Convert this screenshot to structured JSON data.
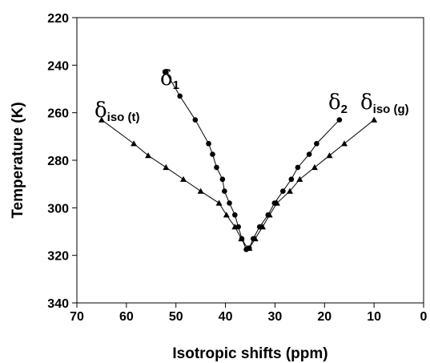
{
  "chart_data": {
    "type": "line",
    "title": "",
    "xlabel": "Isotropic shifts (ppm)",
    "ylabel": "Temperature (K)",
    "xlim": [
      70,
      0
    ],
    "ylim": [
      340,
      220
    ],
    "x_reversed": true,
    "y_reversed": true,
    "x_ticks": [
      70,
      60,
      50,
      40,
      30,
      20,
      10,
      0
    ],
    "y_ticks": [
      220,
      240,
      260,
      280,
      300,
      320,
      340
    ],
    "grid": false,
    "legend": "none",
    "series": [
      {
        "name": "δ1",
        "label_main": "δ",
        "label_sub": "1",
        "marker": "circle",
        "points": [
          [
            52,
            243
          ],
          [
            49.2,
            253
          ],
          [
            46.1,
            263
          ],
          [
            43.4,
            273
          ],
          [
            42.6,
            277.5
          ],
          [
            41.8,
            283
          ],
          [
            40.6,
            288
          ],
          [
            40.2,
            293
          ],
          [
            39.2,
            298
          ],
          [
            38.1,
            303
          ],
          [
            37.4,
            308
          ],
          [
            36.7,
            313
          ],
          [
            35.8,
            317.5
          ]
        ]
      },
      {
        "name": "δ2",
        "label_main": "δ",
        "label_sub": "2",
        "marker": "circle",
        "points": [
          [
            17,
            263
          ],
          [
            21.6,
            273
          ],
          [
            23.1,
            277.5
          ],
          [
            25.4,
            283
          ],
          [
            26.7,
            288
          ],
          [
            28.4,
            293
          ],
          [
            30.1,
            298
          ],
          [
            31.4,
            303
          ],
          [
            33.1,
            308
          ],
          [
            34.4,
            313
          ],
          [
            35.2,
            317
          ]
        ]
      },
      {
        "name": "δiso (g)",
        "label_main": "δ",
        "label_sub": "iso (g)",
        "marker": "triangle",
        "points": [
          [
            10,
            263
          ],
          [
            16,
            273
          ],
          [
            19,
            278
          ],
          [
            22,
            283
          ],
          [
            25,
            288
          ],
          [
            27,
            293
          ],
          [
            29.6,
            298
          ],
          [
            31.1,
            303
          ],
          [
            32.5,
            308
          ],
          [
            34,
            313
          ],
          [
            35.2,
            317
          ]
        ]
      },
      {
        "name": "δiso (t)",
        "label_main": "δ",
        "label_sub": "iso (t)",
        "marker": "triangle",
        "points": [
          [
            65,
            263
          ],
          [
            58.5,
            273
          ],
          [
            55.6,
            278
          ],
          [
            52,
            283
          ],
          [
            48.5,
            288
          ],
          [
            45,
            293
          ],
          [
            41.3,
            298
          ],
          [
            39.8,
            303
          ],
          [
            38.1,
            308
          ],
          [
            36.8,
            313
          ],
          [
            35.5,
            317
          ]
        ]
      }
    ]
  }
}
